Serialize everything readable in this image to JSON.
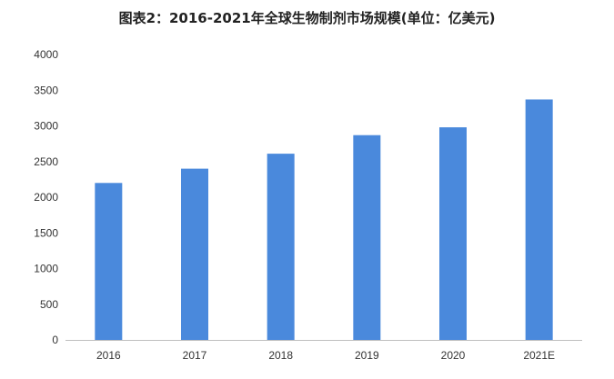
{
  "chart_data": {
    "type": "bar",
    "title": "图表2：2016-2021年全球生物制剂市场规模(单位：亿美元)",
    "categories": [
      "2016",
      "2017",
      "2018",
      "2019",
      "2020",
      "2021E"
    ],
    "values": [
      2200,
      2400,
      2610,
      2870,
      2980,
      3370
    ],
    "xlabel": "",
    "ylabel": "",
    "ylim": [
      0,
      4000
    ],
    "yticks": [
      0,
      500,
      1000,
      1500,
      2000,
      2500,
      3000,
      3500,
      4000
    ],
    "grid": false,
    "legend": "none",
    "bar_color": "#4a89dc",
    "axis_color": "#bfbfbf"
  }
}
